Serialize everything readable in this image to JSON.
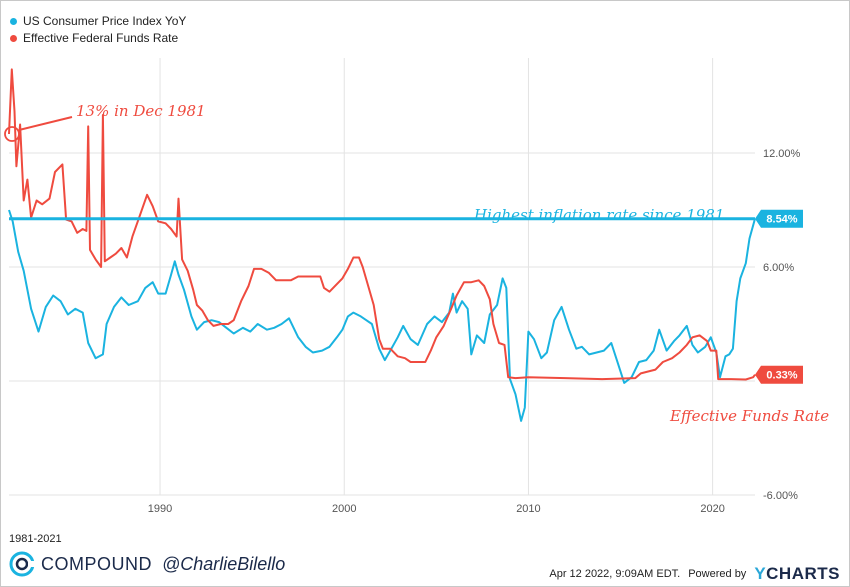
{
  "legend": {
    "series1": "US Consumer Price Index YoY",
    "series2": "Effective Federal Funds Rate"
  },
  "colors": {
    "cpi": "#1ab3e0",
    "ffr": "#ef4b3f",
    "grid": "#e3e3e3"
  },
  "chart_data": {
    "type": "line",
    "x_ticks": [
      "1990",
      "2000",
      "2010",
      "2020"
    ],
    "y_ticks": [
      "12.00%",
      "6.00%",
      "-6.00%"
    ],
    "ylim": [
      -6,
      17
    ],
    "xlim": [
      1981.8,
      2022.3
    ],
    "reference_line": {
      "value": 8.54,
      "label": "8.54%"
    },
    "last_values": {
      "cpi": "8.54%",
      "ffr": "0.33%"
    },
    "annotations": {
      "peak": "13% in Dec 1981",
      "highest": "Highest inflation rate since 1981",
      "funds": "Effective Funds Rate"
    },
    "series": [
      {
        "name": "US Consumer Price Index YoY",
        "points": [
          [
            1981.8,
            9.0
          ],
          [
            1982.0,
            8.4
          ],
          [
            1982.3,
            6.8
          ],
          [
            1982.6,
            5.8
          ],
          [
            1983.0,
            3.8
          ],
          [
            1983.4,
            2.6
          ],
          [
            1983.8,
            3.9
          ],
          [
            1984.2,
            4.5
          ],
          [
            1984.6,
            4.2
          ],
          [
            1985.0,
            3.5
          ],
          [
            1985.4,
            3.8
          ],
          [
            1985.8,
            3.6
          ],
          [
            1986.1,
            2.0
          ],
          [
            1986.5,
            1.2
          ],
          [
            1986.9,
            1.4
          ],
          [
            1987.1,
            3.0
          ],
          [
            1987.5,
            3.9
          ],
          [
            1987.9,
            4.4
          ],
          [
            1988.3,
            4.0
          ],
          [
            1988.8,
            4.2
          ],
          [
            1989.2,
            4.9
          ],
          [
            1989.6,
            5.2
          ],
          [
            1989.9,
            4.6
          ],
          [
            1990.3,
            4.6
          ],
          [
            1990.6,
            5.6
          ],
          [
            1990.8,
            6.3
          ],
          [
            1991.0,
            5.6
          ],
          [
            1991.3,
            4.8
          ],
          [
            1991.7,
            3.4
          ],
          [
            1992.0,
            2.7
          ],
          [
            1992.4,
            3.1
          ],
          [
            1992.8,
            3.2
          ],
          [
            1993.2,
            3.1
          ],
          [
            1993.6,
            2.8
          ],
          [
            1994.0,
            2.5
          ],
          [
            1994.5,
            2.8
          ],
          [
            1994.9,
            2.6
          ],
          [
            1995.3,
            3.0
          ],
          [
            1995.8,
            2.7
          ],
          [
            1996.2,
            2.8
          ],
          [
            1996.6,
            3.0
          ],
          [
            1997.0,
            3.3
          ],
          [
            1997.5,
            2.3
          ],
          [
            1997.9,
            1.8
          ],
          [
            1998.3,
            1.5
          ],
          [
            1998.8,
            1.6
          ],
          [
            1999.2,
            1.8
          ],
          [
            1999.6,
            2.3
          ],
          [
            1999.9,
            2.7
          ],
          [
            2000.2,
            3.4
          ],
          [
            2000.5,
            3.6
          ],
          [
            2000.9,
            3.4
          ],
          [
            2001.2,
            3.2
          ],
          [
            2001.5,
            3.0
          ],
          [
            2001.9,
            1.7
          ],
          [
            2002.2,
            1.1
          ],
          [
            2002.5,
            1.6
          ],
          [
            2002.9,
            2.3
          ],
          [
            2003.2,
            2.9
          ],
          [
            2003.6,
            2.2
          ],
          [
            2004.0,
            1.9
          ],
          [
            2004.5,
            3.0
          ],
          [
            2004.9,
            3.4
          ],
          [
            2005.3,
            3.1
          ],
          [
            2005.7,
            3.6
          ],
          [
            2005.9,
            4.6
          ],
          [
            2006.1,
            3.6
          ],
          [
            2006.4,
            4.2
          ],
          [
            2006.7,
            3.8
          ],
          [
            2006.9,
            1.4
          ],
          [
            2007.2,
            2.4
          ],
          [
            2007.6,
            2.0
          ],
          [
            2007.9,
            3.5
          ],
          [
            2008.3,
            4.0
          ],
          [
            2008.6,
            5.4
          ],
          [
            2008.8,
            4.9
          ],
          [
            2009.0,
            0.1
          ],
          [
            2009.3,
            -0.7
          ],
          [
            2009.6,
            -2.1
          ],
          [
            2009.8,
            -1.4
          ],
          [
            2010.0,
            2.6
          ],
          [
            2010.3,
            2.2
          ],
          [
            2010.7,
            1.2
          ],
          [
            2011.0,
            1.5
          ],
          [
            2011.4,
            3.2
          ],
          [
            2011.8,
            3.9
          ],
          [
            2012.2,
            2.7
          ],
          [
            2012.6,
            1.7
          ],
          [
            2012.9,
            1.8
          ],
          [
            2013.3,
            1.4
          ],
          [
            2013.7,
            1.5
          ],
          [
            2014.1,
            1.6
          ],
          [
            2014.5,
            2.0
          ],
          [
            2014.9,
            0.8
          ],
          [
            2015.2,
            -0.1
          ],
          [
            2015.6,
            0.2
          ],
          [
            2016.0,
            1.0
          ],
          [
            2016.4,
            1.1
          ],
          [
            2016.8,
            1.6
          ],
          [
            2017.1,
            2.7
          ],
          [
            2017.5,
            1.6
          ],
          [
            2017.9,
            2.1
          ],
          [
            2018.2,
            2.4
          ],
          [
            2018.6,
            2.9
          ],
          [
            2018.9,
            1.9
          ],
          [
            2019.2,
            1.5
          ],
          [
            2019.6,
            1.8
          ],
          [
            2019.9,
            2.3
          ],
          [
            2020.2,
            1.5
          ],
          [
            2020.4,
            0.2
          ],
          [
            2020.7,
            1.3
          ],
          [
            2020.9,
            1.4
          ],
          [
            2021.1,
            1.7
          ],
          [
            2021.3,
            4.2
          ],
          [
            2021.5,
            5.4
          ],
          [
            2021.8,
            6.2
          ],
          [
            2022.0,
            7.5
          ],
          [
            2022.3,
            8.54
          ]
        ]
      },
      {
        "name": "Effective Federal Funds Rate",
        "points": [
          [
            1981.8,
            13.0
          ],
          [
            1981.95,
            16.4
          ],
          [
            1982.1,
            14.2
          ],
          [
            1982.2,
            11.3
          ],
          [
            1982.4,
            13.5
          ],
          [
            1982.6,
            9.5
          ],
          [
            1982.8,
            10.6
          ],
          [
            1983.0,
            8.6
          ],
          [
            1983.3,
            9.5
          ],
          [
            1983.6,
            9.3
          ],
          [
            1984.0,
            9.6
          ],
          [
            1984.3,
            11.0
          ],
          [
            1984.7,
            11.4
          ],
          [
            1984.9,
            8.5
          ],
          [
            1985.2,
            8.4
          ],
          [
            1985.5,
            7.8
          ],
          [
            1985.8,
            8.0
          ],
          [
            1986.0,
            7.9
          ],
          [
            1986.1,
            13.4
          ],
          [
            1986.2,
            6.9
          ],
          [
            1986.5,
            6.4
          ],
          [
            1986.8,
            6.0
          ],
          [
            1986.9,
            14.0
          ],
          [
            1987.0,
            6.3
          ],
          [
            1987.3,
            6.5
          ],
          [
            1987.6,
            6.7
          ],
          [
            1987.9,
            7.0
          ],
          [
            1988.2,
            6.5
          ],
          [
            1988.5,
            7.6
          ],
          [
            1988.9,
            8.7
          ],
          [
            1989.3,
            9.8
          ],
          [
            1989.6,
            9.2
          ],
          [
            1989.9,
            8.4
          ],
          [
            1990.3,
            8.3
          ],
          [
            1990.6,
            8.0
          ],
          [
            1990.9,
            7.6
          ],
          [
            1991.0,
            9.6
          ],
          [
            1991.2,
            6.4
          ],
          [
            1991.5,
            5.8
          ],
          [
            1991.8,
            4.8
          ],
          [
            1992.0,
            4.0
          ],
          [
            1992.3,
            3.7
          ],
          [
            1992.6,
            3.2
          ],
          [
            1992.9,
            2.9
          ],
          [
            1993.3,
            3.0
          ],
          [
            1993.7,
            3.0
          ],
          [
            1994.0,
            3.2
          ],
          [
            1994.4,
            4.2
          ],
          [
            1994.8,
            5.0
          ],
          [
            1995.1,
            5.9
          ],
          [
            1995.5,
            5.9
          ],
          [
            1995.9,
            5.7
          ],
          [
            1996.3,
            5.3
          ],
          [
            1996.7,
            5.3
          ],
          [
            1997.1,
            5.3
          ],
          [
            1997.5,
            5.5
          ],
          [
            1997.9,
            5.5
          ],
          [
            1998.3,
            5.5
          ],
          [
            1998.7,
            5.5
          ],
          [
            1998.9,
            4.9
          ],
          [
            1999.2,
            4.7
          ],
          [
            1999.6,
            5.1
          ],
          [
            1999.9,
            5.4
          ],
          [
            2000.2,
            5.9
          ],
          [
            2000.5,
            6.5
          ],
          [
            2000.8,
            6.5
          ],
          [
            2001.0,
            6.0
          ],
          [
            2001.3,
            5.0
          ],
          [
            2001.6,
            4.0
          ],
          [
            2001.9,
            2.2
          ],
          [
            2002.1,
            1.7
          ],
          [
            2002.5,
            1.7
          ],
          [
            2002.9,
            1.3
          ],
          [
            2003.3,
            1.2
          ],
          [
            2003.6,
            1.0
          ],
          [
            2004.0,
            1.0
          ],
          [
            2004.4,
            1.0
          ],
          [
            2004.7,
            1.6
          ],
          [
            2005.0,
            2.3
          ],
          [
            2005.4,
            2.9
          ],
          [
            2005.8,
            3.8
          ],
          [
            2006.1,
            4.5
          ],
          [
            2006.5,
            5.2
          ],
          [
            2006.9,
            5.2
          ],
          [
            2007.3,
            5.3
          ],
          [
            2007.6,
            5.0
          ],
          [
            2007.9,
            4.3
          ],
          [
            2008.1,
            3.0
          ],
          [
            2008.4,
            2.0
          ],
          [
            2008.7,
            1.9
          ],
          [
            2008.9,
            0.2
          ],
          [
            2009.3,
            0.15
          ],
          [
            2010.0,
            0.2
          ],
          [
            2012.0,
            0.15
          ],
          [
            2014.0,
            0.1
          ],
          [
            2015.8,
            0.15
          ],
          [
            2016.1,
            0.4
          ],
          [
            2016.9,
            0.6
          ],
          [
            2017.3,
            1.0
          ],
          [
            2017.8,
            1.2
          ],
          [
            2018.2,
            1.5
          ],
          [
            2018.6,
            1.9
          ],
          [
            2018.9,
            2.3
          ],
          [
            2019.3,
            2.4
          ],
          [
            2019.7,
            2.1
          ],
          [
            2019.9,
            1.6
          ],
          [
            2020.2,
            1.6
          ],
          [
            2020.3,
            0.1
          ],
          [
            2021.0,
            0.1
          ],
          [
            2021.8,
            0.08
          ],
          [
            2022.2,
            0.2
          ],
          [
            2022.3,
            0.33
          ]
        ]
      }
    ]
  },
  "footer": {
    "period": "1981-2021",
    "brand": "COMPOUND",
    "handle": "@CharlieBilello",
    "timestamp": "Apr 12 2022, 9:09AM EDT.",
    "powered": "Powered by",
    "ycharts_y": "Y",
    "ycharts_rest": "CHARTS"
  }
}
